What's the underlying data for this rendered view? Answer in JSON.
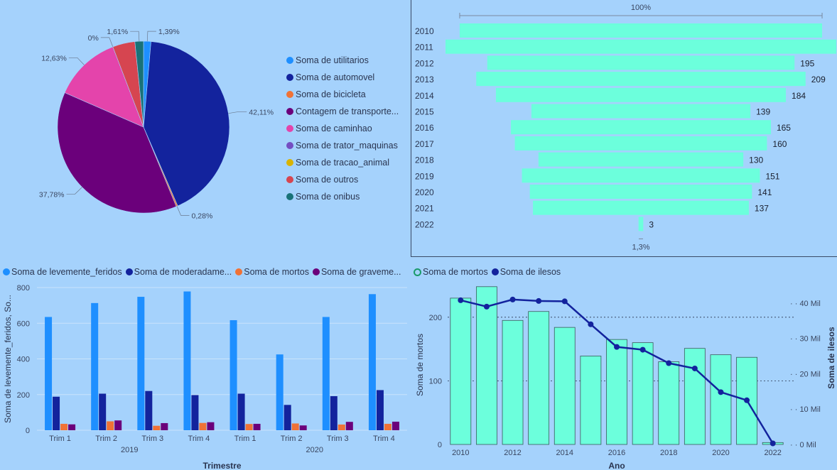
{
  "chart_data": [
    {
      "type": "pie",
      "slices": [
        {
          "label": "Soma de utilitarios",
          "value": 1.39,
          "display": "1,39%",
          "color": "#1e8fff"
        },
        {
          "label": "Soma de automovel",
          "value": 42.11,
          "display": "42,11%",
          "color": "#13239d"
        },
        {
          "label": "Soma de bicicleta",
          "value": 0.28,
          "display": "0,28%",
          "color": "#f07236"
        },
        {
          "label": "Contagem de transporte...",
          "value": 37.78,
          "display": "37,78%",
          "color": "#6b007b"
        },
        {
          "label": "Soma de caminhao",
          "value": 12.63,
          "display": "12,63%",
          "color": "#e444ab"
        },
        {
          "label": "Soma de trator_maquinas",
          "value": 0.0,
          "display": "",
          "color": "#744ec2"
        },
        {
          "label": "Soma de tracao_animal",
          "value": 0.0,
          "display": "0%",
          "color": "#d9b300"
        },
        {
          "label": "Soma de outros",
          "value": 4.2,
          "display": "",
          "color": "#d64550"
        },
        {
          "label": "Soma de onibus",
          "value": 1.61,
          "display": "1,61%",
          "color": "#197278"
        }
      ]
    },
    {
      "type": "bar",
      "orientation": "funnel",
      "top_label": "100%",
      "bottom_label": "1,3%",
      "color": "#6cffdc",
      "categories": [
        "2010",
        "2011",
        "2012",
        "2013",
        "2014",
        "2015",
        "2016",
        "2017",
        "2018",
        "2019",
        "2020",
        "2021",
        "2022"
      ],
      "values": [
        230,
        248,
        195,
        209,
        184,
        139,
        165,
        160,
        130,
        151,
        141,
        137,
        3
      ],
      "data_labels": [
        "",
        "",
        "195",
        "209",
        "184",
        "139",
        "165",
        "160",
        "130",
        "151",
        "141",
        "137",
        "3"
      ]
    },
    {
      "type": "bar",
      "ylabel": "Soma de levemente_feridos, So...",
      "xlabel": "Trimestre",
      "ylim": [
        0,
        800
      ],
      "yticks": [
        "0",
        "200",
        "400",
        "600",
        "800"
      ],
      "categories": [
        "Trim 1",
        "Trim 2",
        "Trim 3",
        "Trim 4",
        "Trim 1",
        "Trim 2",
        "Trim 3",
        "Trim 4"
      ],
      "groups": [
        "2019",
        "2020"
      ],
      "series": [
        {
          "name": "Soma de levemente_feridos",
          "color": "#1e8fff",
          "values": [
            635,
            713,
            748,
            778,
            617,
            425,
            635,
            763
          ]
        },
        {
          "name": "Soma de moderadame...",
          "color": "#13239d",
          "values": [
            188,
            205,
            220,
            197,
            205,
            142,
            191,
            225
          ]
        },
        {
          "name": "Soma de mortos",
          "color": "#f07236",
          "values": [
            36,
            50,
            25,
            41,
            35,
            38,
            32,
            36
          ]
        },
        {
          "name": "Soma de graveme...",
          "color": "#6b007b",
          "values": [
            33,
            55,
            40,
            45,
            36,
            27,
            47,
            48
          ]
        }
      ]
    },
    {
      "type": "bar",
      "xlabel": "Ano",
      "ylabel": "Soma de mortos",
      "y2label": "Soma de ilesos",
      "ylim": [
        0,
        250
      ],
      "y2lim": [
        0,
        45000
      ],
      "yticks": [
        "0",
        "100",
        "200"
      ],
      "y2ticks": [
        "0 Mil",
        "10 Mil",
        "20 Mil",
        "30 Mil",
        "40 Mil"
      ],
      "xticks": [
        "2010",
        "2012",
        "2014",
        "2016",
        "2018",
        "2020",
        "2022"
      ],
      "x": [
        2010,
        2011,
        2012,
        2013,
        2014,
        2015,
        2016,
        2017,
        2018,
        2019,
        2020,
        2021,
        2022
      ],
      "series": [
        {
          "name": "Soma de mortos",
          "kind": "bar",
          "color": "#6cffdc",
          "values": [
            230,
            248,
            195,
            209,
            184,
            139,
            165,
            160,
            130,
            151,
            141,
            137,
            3
          ]
        },
        {
          "name": "Soma de ilesos",
          "kind": "line",
          "color": "#13239d",
          "values": [
            40800,
            39000,
            41000,
            40600,
            40500,
            34000,
            27600,
            26800,
            23000,
            21500,
            14800,
            12500,
            300
          ]
        }
      ]
    }
  ]
}
